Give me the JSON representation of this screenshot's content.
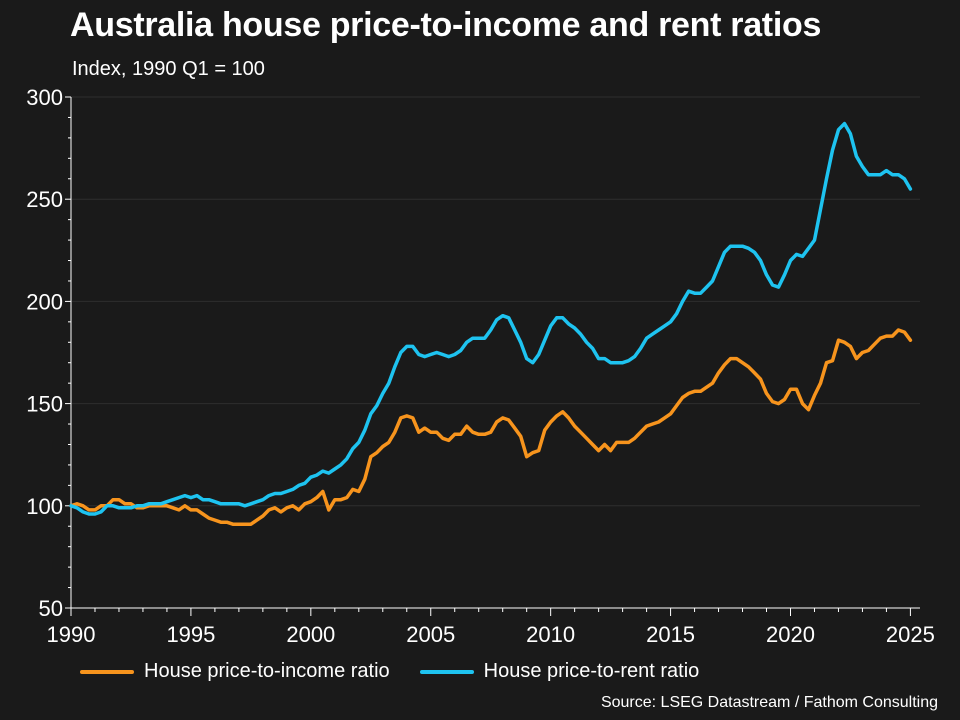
{
  "chart_data": {
    "type": "line",
    "title": "Australia house price-to-income and rent ratios",
    "subtitle": "Index, 1990 Q1 = 100",
    "source": "Source: LSEG Datastream / Fathom Consulting",
    "xlim": [
      1990,
      2025.4
    ],
    "ylim": [
      50,
      300
    ],
    "x_ticks": [
      1990,
      1995,
      2000,
      2005,
      2010,
      2015,
      2020,
      2025
    ],
    "y_ticks": [
      50,
      100,
      150,
      200,
      250,
      300
    ],
    "grid": "horizontal",
    "legend_position": "bottom",
    "series": [
      {
        "name": "House price-to-income ratio",
        "color": "#f7941d",
        "points": [
          [
            1990.0,
            100
          ],
          [
            1990.25,
            101
          ],
          [
            1990.5,
            100
          ],
          [
            1990.75,
            98
          ],
          [
            1991.0,
            98
          ],
          [
            1991.25,
            100
          ],
          [
            1991.5,
            100
          ],
          [
            1991.75,
            103
          ],
          [
            1992.0,
            103
          ],
          [
            1992.25,
            101
          ],
          [
            1992.5,
            101
          ],
          [
            1992.75,
            99
          ],
          [
            1993.0,
            99
          ],
          [
            1993.25,
            100
          ],
          [
            1993.5,
            100
          ],
          [
            1993.75,
            100
          ],
          [
            1994.0,
            100
          ],
          [
            1994.25,
            99
          ],
          [
            1994.5,
            98
          ],
          [
            1994.75,
            100
          ],
          [
            1995.0,
            98
          ],
          [
            1995.25,
            98
          ],
          [
            1995.5,
            96
          ],
          [
            1995.75,
            94
          ],
          [
            1996.0,
            93
          ],
          [
            1996.25,
            92
          ],
          [
            1996.5,
            92
          ],
          [
            1996.75,
            91
          ],
          [
            1997.0,
            91
          ],
          [
            1997.25,
            91
          ],
          [
            1997.5,
            91
          ],
          [
            1997.75,
            93
          ],
          [
            1998.0,
            95
          ],
          [
            1998.25,
            98
          ],
          [
            1998.5,
            99
          ],
          [
            1998.75,
            97
          ],
          [
            1999.0,
            99
          ],
          [
            1999.25,
            100
          ],
          [
            1999.5,
            98
          ],
          [
            1999.75,
            101
          ],
          [
            2000.0,
            102
          ],
          [
            2000.25,
            104
          ],
          [
            2000.5,
            107
          ],
          [
            2000.75,
            98
          ],
          [
            2001.0,
            103
          ],
          [
            2001.25,
            103
          ],
          [
            2001.5,
            104
          ],
          [
            2001.75,
            108
          ],
          [
            2002.0,
            107
          ],
          [
            2002.25,
            113
          ],
          [
            2002.5,
            124
          ],
          [
            2002.75,
            126
          ],
          [
            2003.0,
            129
          ],
          [
            2003.25,
            131
          ],
          [
            2003.5,
            136
          ],
          [
            2003.75,
            143
          ],
          [
            2004.0,
            144
          ],
          [
            2004.25,
            143
          ],
          [
            2004.5,
            136
          ],
          [
            2004.75,
            138
          ],
          [
            2005.0,
            136
          ],
          [
            2005.25,
            136
          ],
          [
            2005.5,
            133
          ],
          [
            2005.75,
            132
          ],
          [
            2006.0,
            135
          ],
          [
            2006.25,
            135
          ],
          [
            2006.5,
            139
          ],
          [
            2006.75,
            136
          ],
          [
            2007.0,
            135
          ],
          [
            2007.25,
            135
          ],
          [
            2007.5,
            136
          ],
          [
            2007.75,
            141
          ],
          [
            2008.0,
            143
          ],
          [
            2008.25,
            142
          ],
          [
            2008.5,
            138
          ],
          [
            2008.75,
            134
          ],
          [
            2009.0,
            124
          ],
          [
            2009.25,
            126
          ],
          [
            2009.5,
            127
          ],
          [
            2009.75,
            137
          ],
          [
            2010.0,
            141
          ],
          [
            2010.25,
            144
          ],
          [
            2010.5,
            146
          ],
          [
            2010.75,
            143
          ],
          [
            2011.0,
            139
          ],
          [
            2011.25,
            136
          ],
          [
            2011.5,
            133
          ],
          [
            2011.75,
            130
          ],
          [
            2012.0,
            127
          ],
          [
            2012.25,
            130
          ],
          [
            2012.5,
            127
          ],
          [
            2012.75,
            131
          ],
          [
            2013.0,
            131
          ],
          [
            2013.25,
            131
          ],
          [
            2013.5,
            133
          ],
          [
            2013.75,
            136
          ],
          [
            2014.0,
            139
          ],
          [
            2014.25,
            140
          ],
          [
            2014.5,
            141
          ],
          [
            2014.75,
            143
          ],
          [
            2015.0,
            145
          ],
          [
            2015.25,
            149
          ],
          [
            2015.5,
            153
          ],
          [
            2015.75,
            155
          ],
          [
            2016.0,
            156
          ],
          [
            2016.25,
            156
          ],
          [
            2016.5,
            158
          ],
          [
            2016.75,
            160
          ],
          [
            2017.0,
            165
          ],
          [
            2017.25,
            169
          ],
          [
            2017.5,
            172
          ],
          [
            2017.75,
            172
          ],
          [
            2018.0,
            170
          ],
          [
            2018.25,
            168
          ],
          [
            2018.5,
            165
          ],
          [
            2018.75,
            162
          ],
          [
            2019.0,
            155
          ],
          [
            2019.25,
            151
          ],
          [
            2019.5,
            150
          ],
          [
            2019.75,
            152
          ],
          [
            2020.0,
            157
          ],
          [
            2020.25,
            157
          ],
          [
            2020.5,
            150
          ],
          [
            2020.75,
            147
          ],
          [
            2021.0,
            154
          ],
          [
            2021.25,
            160
          ],
          [
            2021.5,
            170
          ],
          [
            2021.75,
            171
          ],
          [
            2022.0,
            181
          ],
          [
            2022.25,
            180
          ],
          [
            2022.5,
            178
          ],
          [
            2022.75,
            172
          ],
          [
            2023.0,
            175
          ],
          [
            2023.25,
            176
          ],
          [
            2023.5,
            179
          ],
          [
            2023.75,
            182
          ],
          [
            2024.0,
            183
          ],
          [
            2024.25,
            183
          ],
          [
            2024.5,
            186
          ],
          [
            2024.75,
            185
          ],
          [
            2025.0,
            181
          ]
        ]
      },
      {
        "name": "House price-to-rent ratio",
        "color": "#1ec3f0",
        "points": [
          [
            1990.0,
            100
          ],
          [
            1990.25,
            99
          ],
          [
            1990.5,
            97
          ],
          [
            1990.75,
            96
          ],
          [
            1991.0,
            96
          ],
          [
            1991.25,
            97
          ],
          [
            1991.5,
            100
          ],
          [
            1991.75,
            100
          ],
          [
            1992.0,
            99
          ],
          [
            1992.25,
            99
          ],
          [
            1992.5,
            99
          ],
          [
            1992.75,
            100
          ],
          [
            1993.0,
            100
          ],
          [
            1993.25,
            101
          ],
          [
            1993.5,
            101
          ],
          [
            1993.75,
            101
          ],
          [
            1994.0,
            102
          ],
          [
            1994.25,
            103
          ],
          [
            1994.5,
            104
          ],
          [
            1994.75,
            105
          ],
          [
            1995.0,
            104
          ],
          [
            1995.25,
            105
          ],
          [
            1995.5,
            103
          ],
          [
            1995.75,
            103
          ],
          [
            1996.0,
            102
          ],
          [
            1996.25,
            101
          ],
          [
            1996.5,
            101
          ],
          [
            1996.75,
            101
          ],
          [
            1997.0,
            101
          ],
          [
            1997.25,
            100
          ],
          [
            1997.5,
            101
          ],
          [
            1997.75,
            102
          ],
          [
            1998.0,
            103
          ],
          [
            1998.25,
            105
          ],
          [
            1998.5,
            106
          ],
          [
            1998.75,
            106
          ],
          [
            1999.0,
            107
          ],
          [
            1999.25,
            108
          ],
          [
            1999.5,
            110
          ],
          [
            1999.75,
            111
          ],
          [
            2000.0,
            114
          ],
          [
            2000.25,
            115
          ],
          [
            2000.5,
            117
          ],
          [
            2000.75,
            116
          ],
          [
            2001.0,
            118
          ],
          [
            2001.25,
            120
          ],
          [
            2001.5,
            123
          ],
          [
            2001.75,
            128
          ],
          [
            2002.0,
            131
          ],
          [
            2002.25,
            137
          ],
          [
            2002.5,
            145
          ],
          [
            2002.75,
            149
          ],
          [
            2003.0,
            155
          ],
          [
            2003.25,
            160
          ],
          [
            2003.5,
            168
          ],
          [
            2003.75,
            175
          ],
          [
            2004.0,
            178
          ],
          [
            2004.25,
            178
          ],
          [
            2004.5,
            174
          ],
          [
            2004.75,
            173
          ],
          [
            2005.0,
            174
          ],
          [
            2005.25,
            175
          ],
          [
            2005.5,
            174
          ],
          [
            2005.75,
            173
          ],
          [
            2006.0,
            174
          ],
          [
            2006.25,
            176
          ],
          [
            2006.5,
            180
          ],
          [
            2006.75,
            182
          ],
          [
            2007.0,
            182
          ],
          [
            2007.25,
            182
          ],
          [
            2007.5,
            186
          ],
          [
            2007.75,
            191
          ],
          [
            2008.0,
            193
          ],
          [
            2008.25,
            192
          ],
          [
            2008.5,
            186
          ],
          [
            2008.75,
            180
          ],
          [
            2009.0,
            172
          ],
          [
            2009.25,
            170
          ],
          [
            2009.5,
            174
          ],
          [
            2009.75,
            181
          ],
          [
            2010.0,
            188
          ],
          [
            2010.25,
            192
          ],
          [
            2010.5,
            192
          ],
          [
            2010.75,
            189
          ],
          [
            2011.0,
            187
          ],
          [
            2011.25,
            184
          ],
          [
            2011.5,
            180
          ],
          [
            2011.75,
            177
          ],
          [
            2012.0,
            172
          ],
          [
            2012.25,
            172
          ],
          [
            2012.5,
            170
          ],
          [
            2012.75,
            170
          ],
          [
            2013.0,
            170
          ],
          [
            2013.25,
            171
          ],
          [
            2013.5,
            173
          ],
          [
            2013.75,
            177
          ],
          [
            2014.0,
            182
          ],
          [
            2014.25,
            184
          ],
          [
            2014.5,
            186
          ],
          [
            2014.75,
            188
          ],
          [
            2015.0,
            190
          ],
          [
            2015.25,
            194
          ],
          [
            2015.5,
            200
          ],
          [
            2015.75,
            205
          ],
          [
            2016.0,
            204
          ],
          [
            2016.25,
            204
          ],
          [
            2016.5,
            207
          ],
          [
            2016.75,
            210
          ],
          [
            2017.0,
            217
          ],
          [
            2017.25,
            224
          ],
          [
            2017.5,
            227
          ],
          [
            2017.75,
            227
          ],
          [
            2018.0,
            227
          ],
          [
            2018.25,
            226
          ],
          [
            2018.5,
            224
          ],
          [
            2018.75,
            220
          ],
          [
            2019.0,
            213
          ],
          [
            2019.25,
            208
          ],
          [
            2019.5,
            207
          ],
          [
            2019.75,
            213
          ],
          [
            2020.0,
            220
          ],
          [
            2020.25,
            223
          ],
          [
            2020.5,
            222
          ],
          [
            2020.75,
            226
          ],
          [
            2021.0,
            230
          ],
          [
            2021.25,
            245
          ],
          [
            2021.5,
            260
          ],
          [
            2021.75,
            274
          ],
          [
            2022.0,
            284
          ],
          [
            2022.25,
            287
          ],
          [
            2022.5,
            282
          ],
          [
            2022.75,
            271
          ],
          [
            2023.0,
            266
          ],
          [
            2023.25,
            262
          ],
          [
            2023.5,
            262
          ],
          [
            2023.75,
            262
          ],
          [
            2024.0,
            264
          ],
          [
            2024.25,
            262
          ],
          [
            2024.5,
            262
          ],
          [
            2024.75,
            260
          ],
          [
            2025.0,
            255
          ]
        ]
      }
    ]
  }
}
